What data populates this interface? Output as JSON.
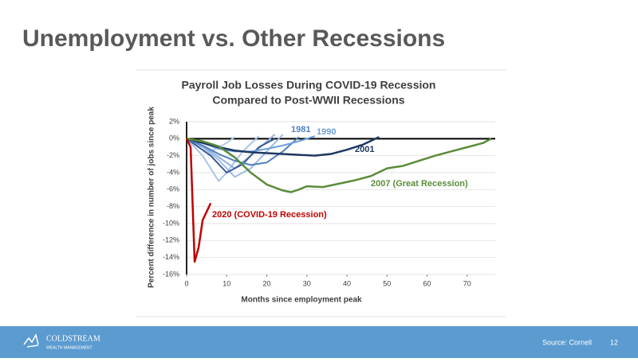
{
  "slide": {
    "title": "Unemployment vs. Other Recessions",
    "footer": {
      "logo": "COLDSTREAM",
      "logo_sub": "WEALTH MANAGEMENT",
      "source": "Source:  Cornell",
      "page": "12"
    }
  },
  "chart_data": {
    "type": "line",
    "title": "Payroll Job Losses During COVID-19 Recession",
    "subtitle": "Compared to Post-WWII Recessions",
    "x_label": "Months since employment peak",
    "y_label": "Percent difference in number of jobs since peak",
    "xlim": [
      0,
      77
    ],
    "ylim": [
      -16,
      2
    ],
    "xticks": [
      0,
      10,
      20,
      30,
      40,
      50,
      60,
      70
    ],
    "yticks": [
      {
        "value": 2,
        "label": "2%"
      },
      {
        "value": 0,
        "label": "0%"
      },
      {
        "value": -2,
        "label": "-2%"
      },
      {
        "value": -4,
        "label": "-4%"
      },
      {
        "value": -6,
        "label": "-6%"
      },
      {
        "value": -8,
        "label": "-8%"
      },
      {
        "value": -10,
        "label": "-10%"
      },
      {
        "value": -12,
        "label": "-12%"
      },
      {
        "value": -14,
        "label": "-14%"
      },
      {
        "value": -16,
        "label": "-16%"
      }
    ],
    "grid": true,
    "series": [
      {
        "color": "#b4cde9",
        "x": [
          0,
          2,
          6,
          10,
          12
        ],
        "values": [
          0,
          -0.5,
          -1.5,
          -0.5,
          0.2
        ]
      },
      {
        "color": "#a9c4e8",
        "x": [
          0,
          4,
          8,
          10,
          14,
          18
        ],
        "values": [
          0,
          -2,
          -5,
          -4,
          -1.5,
          0.3
        ]
      },
      {
        "color": "#9dbce4",
        "x": [
          0,
          4,
          8,
          12,
          16,
          20,
          24
        ],
        "values": [
          0,
          -1,
          -2.5,
          -4.5,
          -3.5,
          -1.5,
          0.5
        ]
      },
      {
        "color": "#8fb0dc",
        "x": [
          0,
          6,
          12,
          16,
          22
        ],
        "values": [
          0,
          -1.5,
          -3.5,
          -2,
          0.5
        ]
      },
      {
        "color": "#3a5a94",
        "x": [
          0,
          6,
          10,
          14,
          18,
          22
        ],
        "values": [
          0,
          -2,
          -4,
          -3,
          -1,
          0
        ]
      },
      {
        "name": "1981",
        "color": "#4f81bd",
        "x": [
          0,
          4,
          8,
          12,
          16,
          20,
          24,
          28
        ],
        "values": [
          0,
          -0.8,
          -1.8,
          -2.6,
          -3.1,
          -2.8,
          -1.5,
          0.2
        ]
      },
      {
        "name": "1990",
        "color": "#6fa0d8",
        "x": [
          0,
          4,
          8,
          12,
          16,
          20,
          24,
          28,
          32
        ],
        "values": [
          0,
          -0.5,
          -1.2,
          -1.5,
          -1.5,
          -1.2,
          -0.8,
          -0.3,
          0.3
        ]
      },
      {
        "name": "2001",
        "color": "#1f3864",
        "x": [
          0,
          4,
          8,
          12,
          16,
          20,
          24,
          28,
          32,
          36,
          40,
          44,
          48
        ],
        "values": [
          0,
          -0.5,
          -1,
          -1.4,
          -1.6,
          -1.7,
          -1.8,
          -1.9,
          -2,
          -1.8,
          -1.3,
          -0.7,
          0.2
        ]
      },
      {
        "name": "2007 (Great Recession)",
        "color": "#5b8c3a",
        "x": [
          0,
          4,
          8,
          12,
          16,
          20,
          24,
          26,
          28,
          30,
          34,
          38,
          42,
          46,
          50,
          54,
          58,
          62,
          66,
          70,
          74,
          76
        ],
        "values": [
          0,
          -0.3,
          -0.9,
          -2.2,
          -4,
          -5.4,
          -6.1,
          -6.3,
          -6,
          -5.6,
          -5.7,
          -5.3,
          -4.9,
          -4.4,
          -3.5,
          -3.2,
          -2.6,
          -2,
          -1.5,
          -1,
          -0.5,
          0
        ]
      },
      {
        "name": "2020 (COVID-19 Recession)",
        "color": "#c00000",
        "x": [
          0,
          1,
          2,
          3,
          4,
          5,
          6
        ],
        "values": [
          0,
          -1,
          -14.5,
          -12.8,
          -9.6,
          -8.6,
          -7.6
        ]
      }
    ]
  }
}
